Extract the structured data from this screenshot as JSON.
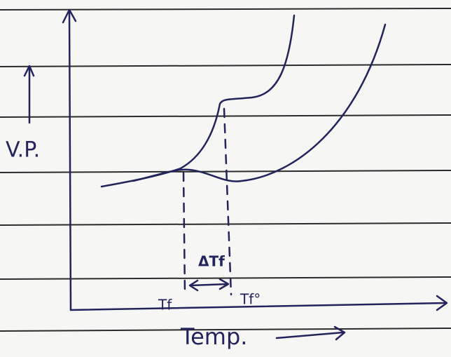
{
  "labels": {
    "y_axis": "V.P.",
    "x_axis": "Temp.",
    "delta": "ΔTf",
    "tf_solution": "Tf",
    "tf_solvent": "Tf°"
  }
}
